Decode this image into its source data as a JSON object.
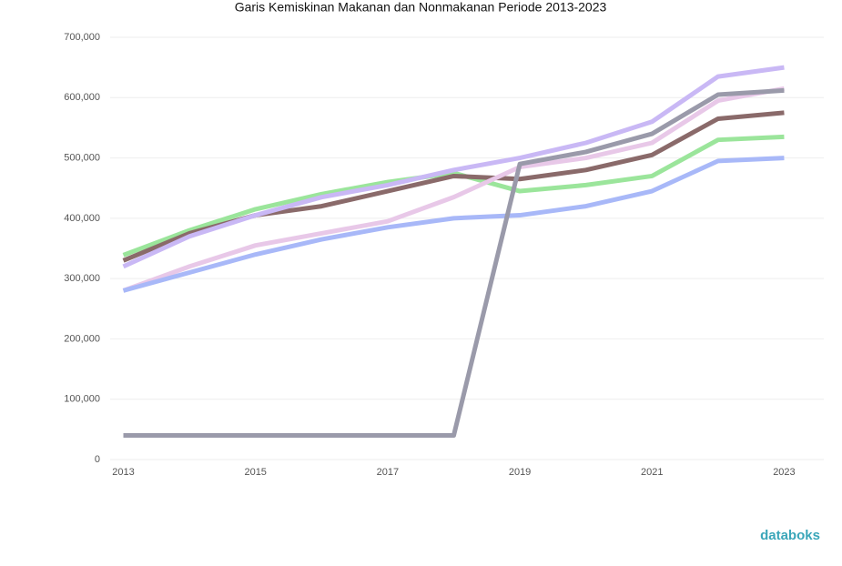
{
  "chart_data": {
    "type": "line",
    "title": "Garis Kemiskinan Makanan dan Nonmakanan Periode 2013-2023",
    "x": [
      2013,
      2014,
      2015,
      2016,
      2017,
      2018,
      2019,
      2020,
      2021,
      2022,
      2023
    ],
    "series": [
      {
        "color": "#9be59b",
        "values": [
          339000,
          380000,
          415000,
          440000,
          460000,
          475000,
          445000,
          455000,
          470000,
          530000,
          535000
        ]
      },
      {
        "color": "#8a6a6a",
        "values": [
          330000,
          375000,
          405000,
          420000,
          445000,
          470000,
          465000,
          480000,
          505000,
          565000,
          575000
        ]
      },
      {
        "color": "#c9b8f5",
        "values": [
          320000,
          370000,
          405000,
          435000,
          455000,
          480000,
          500000,
          525000,
          560000,
          635000,
          650000
        ]
      },
      {
        "color": "#e8c8e8",
        "values": [
          280000,
          320000,
          355000,
          375000,
          395000,
          435000,
          485000,
          500000,
          525000,
          595000,
          615000
        ]
      },
      {
        "color": "#a8b8f8",
        "values": [
          280000,
          310000,
          340000,
          365000,
          385000,
          400000,
          405000,
          420000,
          445000,
          495000,
          500000
        ]
      },
      {
        "color": "#9a9aaa",
        "values": [
          40000,
          40000,
          40000,
          40000,
          40000,
          40000,
          490000,
          510000,
          540000,
          605000,
          612000
        ]
      }
    ],
    "xlim": [
      2012.8,
      2023.6
    ],
    "xticks": [
      2013,
      2015,
      2017,
      2019,
      2021,
      2023
    ],
    "ylim": [
      0,
      700000
    ],
    "yticks": [
      0,
      {
        "value": 100000,
        "label": "100,000"
      },
      {
        "value": 200000,
        "label": "200,000"
      },
      {
        "value": 300000,
        "label": "300,000"
      },
      {
        "value": 400000,
        "label": "400,000"
      },
      {
        "value": 500000,
        "label": "500,000"
      },
      {
        "value": 600000,
        "label": "600,000"
      },
      {
        "value": 700000,
        "label": "700,000"
      }
    ],
    "grid": true
  },
  "logo": "databoks"
}
